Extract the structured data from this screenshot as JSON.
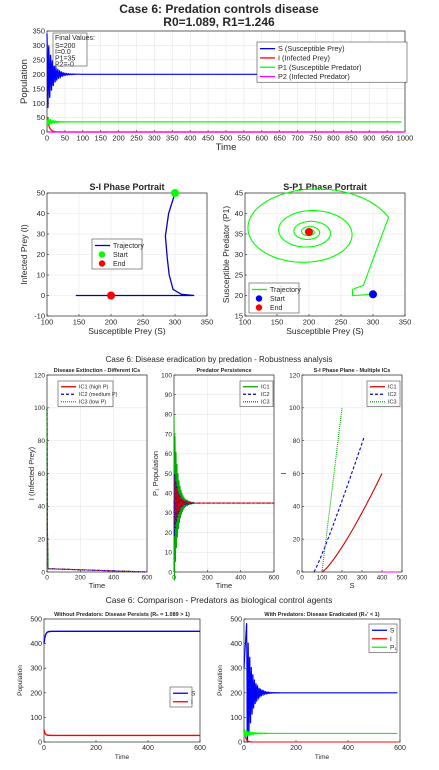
{
  "figure1": {
    "title_line1": "Case 6: Predation controls disease",
    "title_line2": "R0=1.089, R1=1.246",
    "ts": {
      "xlabel": "Time",
      "ylabel": "Population",
      "xlim": [
        0,
        1000
      ],
      "ylim": [
        0,
        350
      ],
      "xticks": [
        "0",
        "50",
        "100",
        "150",
        "200",
        "250",
        "300",
        "350",
        "400",
        "450",
        "500",
        "550",
        "600",
        "650",
        "700",
        "750",
        "800",
        "850",
        "900",
        "950",
        "1000"
      ],
      "yticks": [
        "0",
        "50",
        "100",
        "150",
        "200",
        "250",
        "300",
        "350"
      ],
      "box_title": "Final Values:",
      "box_lines": [
        "S=200",
        "I=0.0",
        "P1=35",
        "P2=-0"
      ],
      "legend": [
        "S (Susceptible Prey)",
        "I (Infected Prey)",
        "P1 (Susceptible Predator)",
        "P2 (Infected Predator)"
      ]
    },
    "si": {
      "title": "S-I Phase Portrait",
      "xlabel": "Susceptible Prey (S)",
      "ylabel": "Infected Prey (I)",
      "xticks": [
        "100",
        "150",
        "200",
        "250",
        "300",
        "350"
      ],
      "yticks": [
        "-10",
        "0",
        "10",
        "20",
        "30",
        "40",
        "50"
      ],
      "legend": [
        "Trajectory",
        "Start",
        "End"
      ]
    },
    "sp": {
      "title": "S-P1 Phase Portrait",
      "xlabel": "Susceptible Prey (S)",
      "ylabel": "Susceptible Predator (P1)",
      "xticks": [
        "100",
        "150",
        "200",
        "250",
        "300",
        "350"
      ],
      "yticks": [
        "15",
        "20",
        "25",
        "30",
        "35",
        "40",
        "45"
      ],
      "legend": [
        "Trajectory",
        "Start",
        "End"
      ]
    }
  },
  "figure2": {
    "title": "Case 6: Disease eradication by predation - Robustness analysis",
    "p1": {
      "title": "Disease Extinction - Different ICs",
      "xlabel": "Time",
      "ylabel": "I (Infected Prey)",
      "xticks": [
        "0",
        "200",
        "400",
        "600"
      ],
      "yticks": [
        "0",
        "20",
        "40",
        "60",
        "80",
        "100",
        "120"
      ],
      "legend": [
        "IC1 (high P)",
        "IC2 (medium P)",
        "IC3 (low P)"
      ]
    },
    "p2": {
      "title": "Predator Persistence",
      "xlabel": "Time",
      "ylabel": "P₁ Population",
      "xticks": [
        "0",
        "200",
        "400",
        "600"
      ],
      "yticks": [
        "0",
        "10",
        "20",
        "30",
        "40",
        "50",
        "60",
        "70",
        "80",
        "90",
        "100"
      ],
      "legend": [
        "IC1",
        "IC2",
        "IC3"
      ]
    },
    "p3": {
      "title": "S-I Phase Plane - Multiple ICs",
      "xlabel": "S",
      "ylabel": "I",
      "xticks": [
        "0",
        "100",
        "200",
        "300",
        "400",
        "500"
      ],
      "yticks": [
        "0",
        "20",
        "40",
        "60",
        "80",
        "100",
        "120"
      ],
      "legend": [
        "IC1",
        "IC2",
        "IC3"
      ]
    }
  },
  "figure3": {
    "title": "Case 6: Comparison - Predators as biological control agents",
    "left": {
      "title": "Without Predators: Disease Persists (R₀ = 1.089 > 1)",
      "xlabel": "Time",
      "ylabel": "Population",
      "xticks": [
        "0",
        "200",
        "400",
        "600"
      ],
      "yticks": [
        "0",
        "100",
        "200",
        "300",
        "400",
        "500"
      ],
      "legend": [
        "S",
        "I"
      ]
    },
    "right": {
      "title": "With Predators: Disease Eradicated (R₀' < 1)",
      "xlabel": "Time",
      "ylabel": "Population",
      "xticks": [
        "0",
        "200",
        "400",
        "600"
      ],
      "yticks": [
        "0",
        "100",
        "200",
        "300",
        "400",
        "500"
      ],
      "legend": [
        "S",
        "I",
        "P₁"
      ]
    }
  },
  "colors": {
    "blue": "#0000ff",
    "red": "#ff0000",
    "green": "#00ff00",
    "magenta": "#ff00ff",
    "dgreen": "#00aa00",
    "red2": "#d90000",
    "blue2": "#0000cc"
  },
  "chart_data": [
    {
      "type": "line",
      "title": "Case 6: Predation controls disease",
      "subtitle": "R0=1.089, R1=1.246",
      "xlabel": "Time",
      "ylabel": "Population",
      "xlim": [
        0,
        1000
      ],
      "ylim": [
        0,
        350
      ],
      "grid": true,
      "legend": "top-right",
      "series": [
        {
          "name": "S (Susceptible Prey)",
          "x": [
            0,
            5,
            10,
            20,
            40,
            80,
            1000
          ],
          "y": [
            300,
            145,
            330,
            160,
            215,
            200,
            200
          ]
        },
        {
          "name": "I (Infected Prey)",
          "x": [
            0,
            30,
            1000
          ],
          "y": [
            50,
            0,
            0
          ]
        },
        {
          "name": "P1 (Susceptible Predator)",
          "x": [
            0,
            10,
            30,
            100,
            1000
          ],
          "y": [
            20,
            50,
            30,
            35,
            35
          ]
        },
        {
          "name": "P2 (Infected Predator)",
          "x": [
            0,
            1000
          ],
          "y": [
            0,
            0
          ]
        }
      ]
    },
    {
      "type": "line",
      "title": "S-I Phase Portrait",
      "xlabel": "Susceptible Prey (S)",
      "ylabel": "Infected Prey (I)",
      "xlim": [
        100,
        350
      ],
      "ylim": [
        -10,
        50
      ],
      "series": [
        {
          "name": "Trajectory",
          "x": [
            300,
            290,
            285,
            290,
            300,
            330,
            250,
            145,
            200
          ],
          "y": [
            50,
            40,
            29,
            10,
            2,
            0,
            0,
            0,
            0
          ]
        }
      ],
      "start": [
        300,
        50
      ],
      "end": [
        200,
        0
      ]
    },
    {
      "type": "line",
      "title": "S-P1 Phase Portrait",
      "xlabel": "Susceptible Prey (S)",
      "ylabel": "Susceptible Predator (P1)",
      "xlim": [
        100,
        350
      ],
      "ylim": [
        15,
        45
      ],
      "series": [
        {
          "name": "Trajectory",
          "x": [
            300,
            270,
            330,
            200
          ],
          "y": [
            20,
            20,
            25,
            35.5
          ]
        }
      ],
      "start": [
        300,
        20.3
      ],
      "end": [
        200,
        35.5
      ]
    },
    {
      "type": "line",
      "title": "Disease Extinction - Different ICs",
      "xlabel": "Time",
      "ylabel": "I (Infected Prey)",
      "xlim": [
        0,
        600
      ],
      "ylim": [
        0,
        120
      ],
      "series": [
        {
          "name": "IC1 (high P)",
          "x": [
            0,
            5,
            600
          ],
          "y": [
            100,
            0,
            0
          ]
        },
        {
          "name": "IC2 (medium P)",
          "x": [
            0,
            5,
            600
          ],
          "y": [
            100,
            0,
            0
          ]
        },
        {
          "name": "IC3 (low P)",
          "x": [
            0,
            5,
            600
          ],
          "y": [
            100,
            0,
            0
          ]
        }
      ]
    },
    {
      "type": "line",
      "title": "Predator Persistence",
      "xlabel": "Time",
      "ylabel": "P₁ Population",
      "xlim": [
        0,
        600
      ],
      "ylim": [
        0,
        100
      ],
      "series": [
        {
          "name": "IC1",
          "x": [
            0,
            10,
            600
          ],
          "y": [
            80,
            45,
            35
          ]
        },
        {
          "name": "IC2",
          "x": [
            0,
            10,
            600
          ],
          "y": [
            50,
            40,
            35
          ]
        },
        {
          "name": "IC3",
          "x": [
            0,
            10,
            600
          ],
          "y": [
            20,
            40,
            35
          ]
        }
      ]
    },
    {
      "type": "line",
      "title": "S-I Phase Plane - Multiple ICs",
      "xlabel": "S",
      "ylabel": "I",
      "xlim": [
        0,
        500
      ],
      "ylim": [
        0,
        120
      ],
      "series": [
        {
          "name": "IC1",
          "x": [
            100,
            200,
            300,
            400
          ],
          "y": [
            0,
            18,
            42,
            60
          ]
        },
        {
          "name": "IC2",
          "x": [
            60,
            150,
            250,
            310
          ],
          "y": [
            0,
            35,
            65,
            82
          ]
        },
        {
          "name": "IC3",
          "x": [
            100,
            130,
            160,
            200
          ],
          "y": [
            0,
            40,
            75,
            100
          ]
        }
      ]
    },
    {
      "type": "line",
      "title": "Without Predators: Disease Persists (R₀ = 1.089 > 1)",
      "xlabel": "Time",
      "ylabel": "Population",
      "xlim": [
        0,
        600
      ],
      "ylim": [
        0,
        500
      ],
      "series": [
        {
          "name": "S",
          "x": [
            0,
            10,
            40,
            600
          ],
          "y": [
            400,
            440,
            450,
            450
          ]
        },
        {
          "name": "I",
          "x": [
            0,
            10,
            40,
            600
          ],
          "y": [
            50,
            32,
            27,
            27
          ]
        }
      ]
    },
    {
      "type": "line",
      "title": "With Predators: Disease Eradicated (R₀' < 1)",
      "xlabel": "Time",
      "ylabel": "Population",
      "xlim": [
        0,
        600
      ],
      "ylim": [
        0,
        500
      ],
      "series": [
        {
          "name": "S",
          "x": [
            0,
            10,
            30,
            100,
            600
          ],
          "y": [
            300,
            485,
            100,
            200,
            200
          ]
        },
        {
          "name": "I",
          "x": [
            0,
            30,
            600
          ],
          "y": [
            50,
            0,
            0
          ]
        },
        {
          "name": "P₁",
          "x": [
            0,
            20,
            600
          ],
          "y": [
            20,
            40,
            35
          ]
        }
      ]
    }
  ]
}
